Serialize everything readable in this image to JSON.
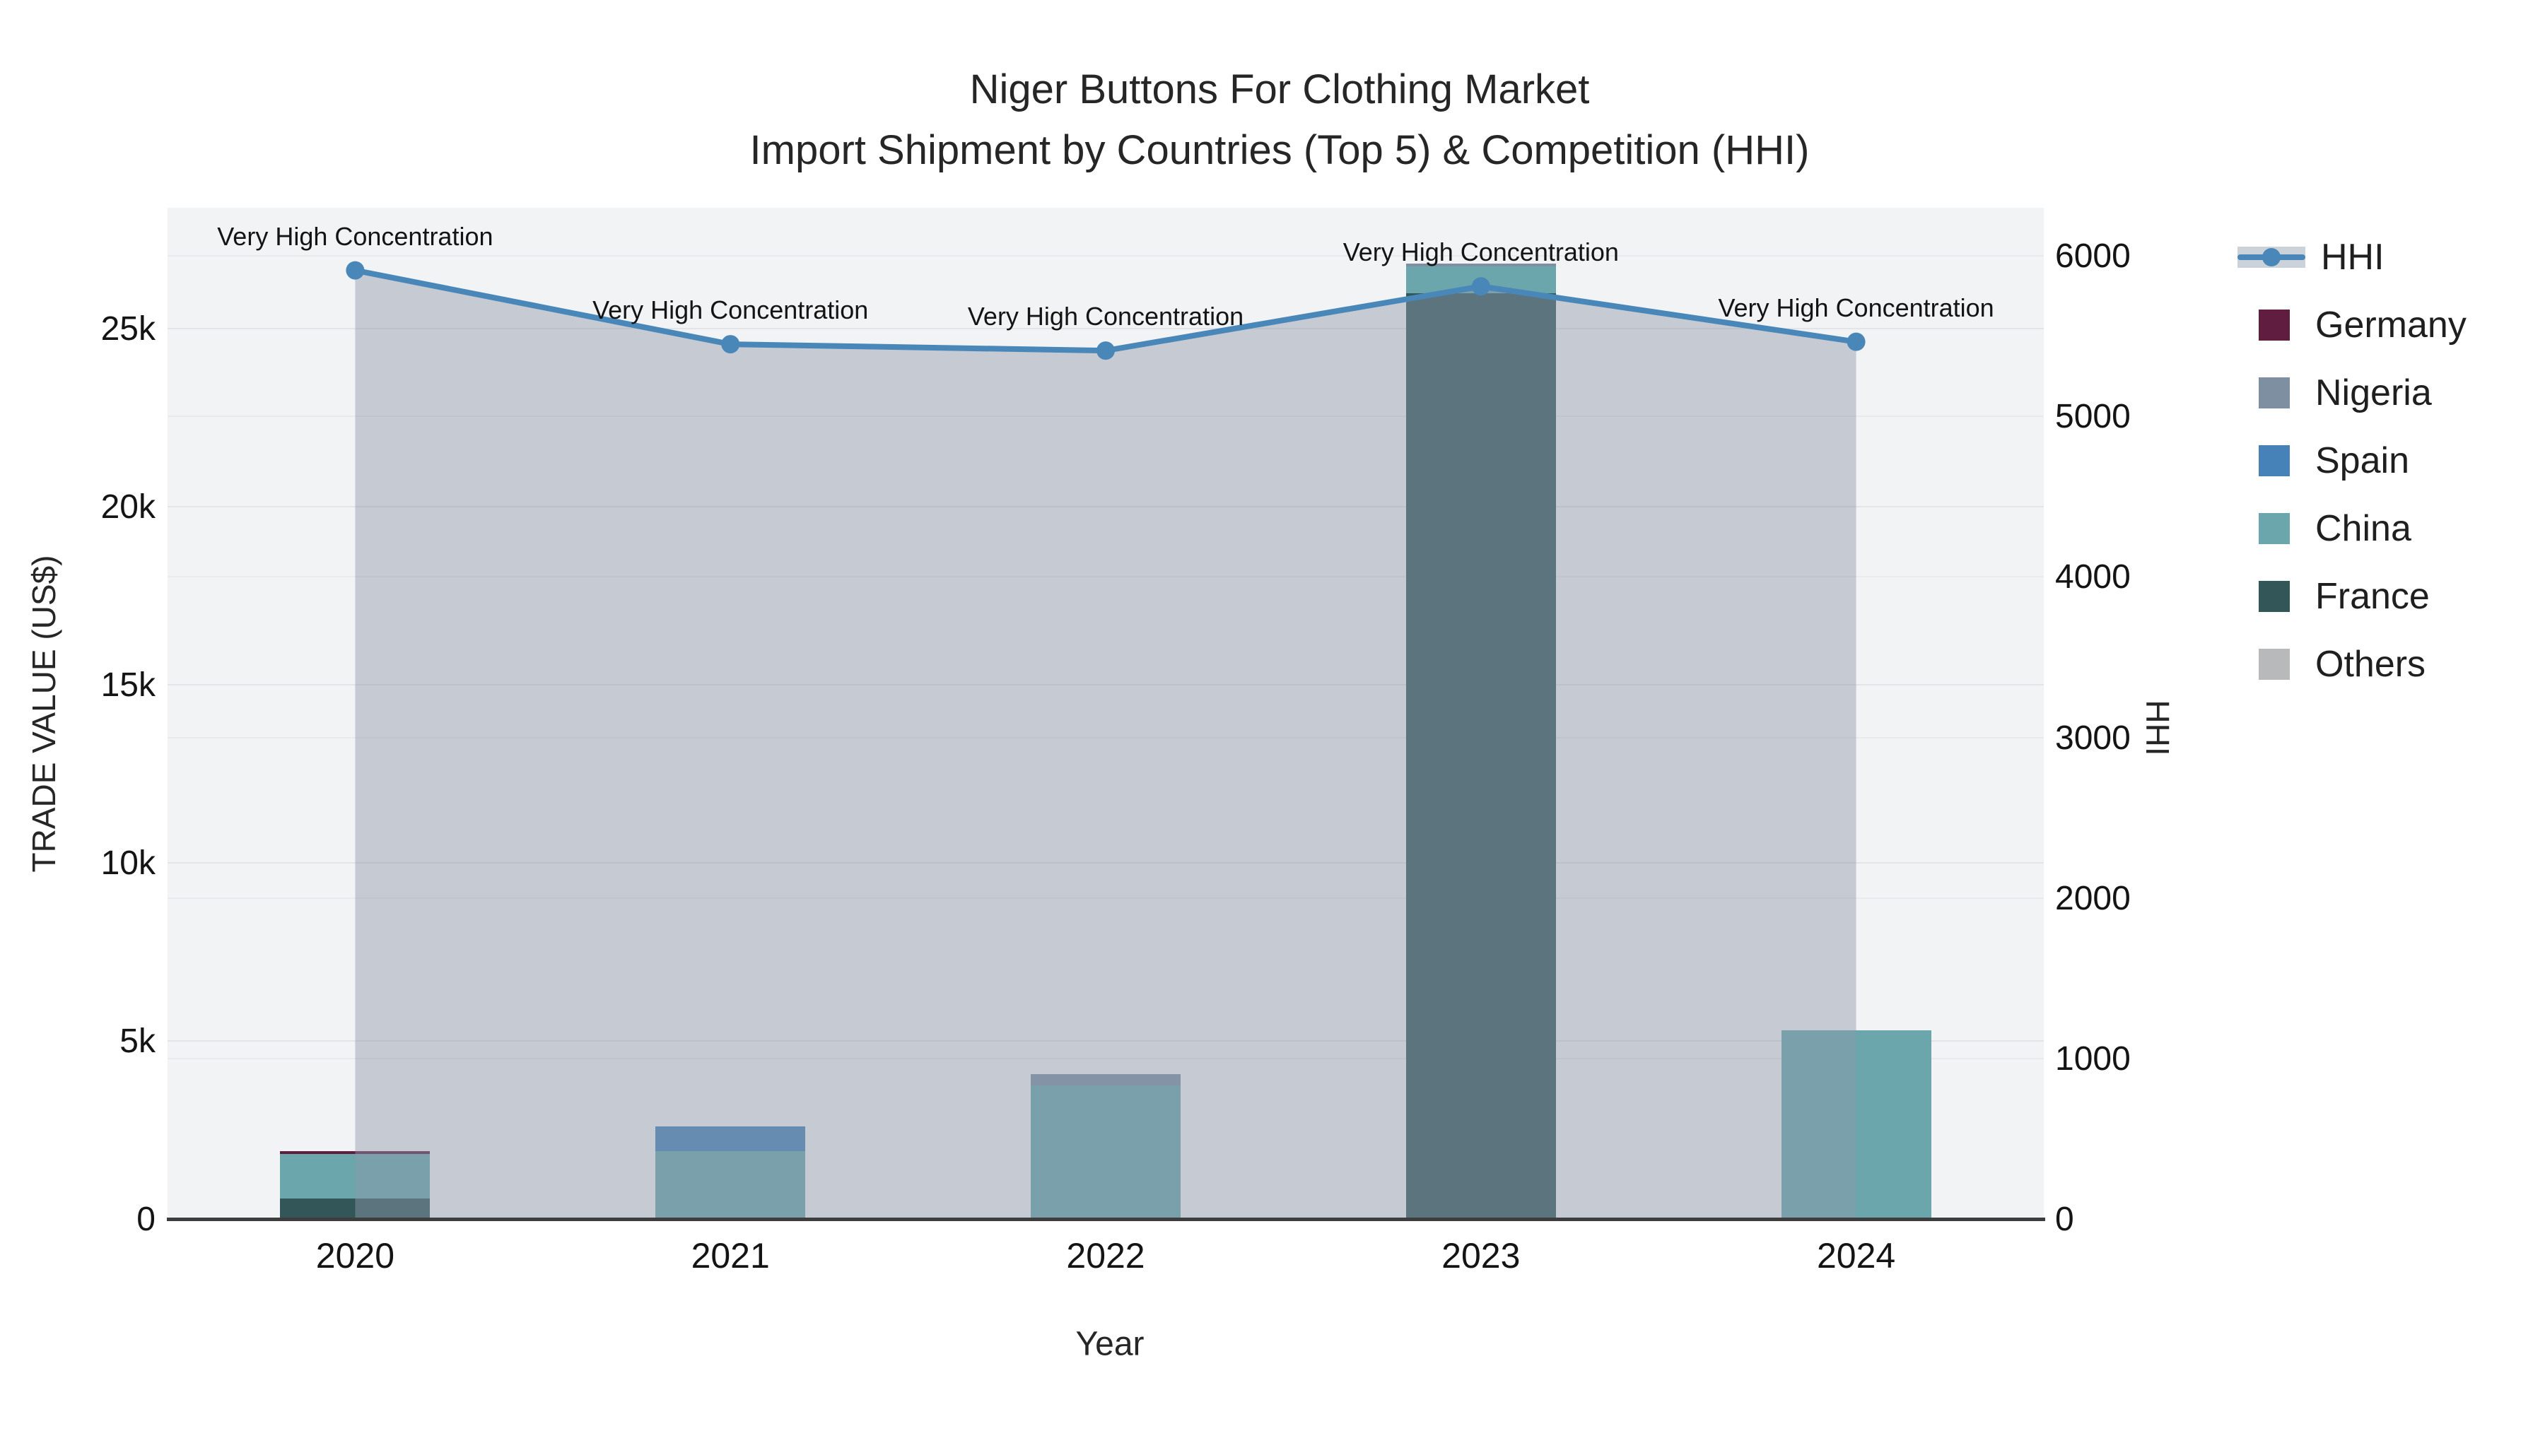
{
  "title": {
    "line1": "Niger Buttons For Clothing Market",
    "line2": "Import Shipment by Countries (Top 5) & Competition (HHI)"
  },
  "axes": {
    "x": {
      "title": "Year",
      "categories": [
        "2020",
        "2021",
        "2022",
        "2023",
        "2024"
      ]
    },
    "y_left": {
      "title": "TRADE VALUE (US$)",
      "tick_labels": [
        "0",
        "5k",
        "10k",
        "15k",
        "20k",
        "25k"
      ],
      "tick_values": [
        0,
        5000,
        10000,
        15000,
        20000,
        25000
      ],
      "range": [
        0,
        28400
      ]
    },
    "y_right": {
      "title": "HHI",
      "tick_labels": [
        "0",
        "1000",
        "2000",
        "3000",
        "4000",
        "5000",
        "6000"
      ],
      "tick_values": [
        0,
        1000,
        2000,
        3000,
        4000,
        5000,
        6000
      ],
      "range": [
        0,
        6300
      ]
    }
  },
  "legend": {
    "items": [
      {
        "label": "HHI",
        "type": "line",
        "color": "#4987b9"
      },
      {
        "label": "Germany",
        "type": "square",
        "color": "#611d40"
      },
      {
        "label": "Nigeria",
        "type": "square",
        "color": "#7e8fa2"
      },
      {
        "label": "Spain",
        "type": "square",
        "color": "#4682b7"
      },
      {
        "label": "China",
        "type": "square",
        "color": "#6aa6ab"
      },
      {
        "label": "France",
        "type": "square",
        "color": "#335659"
      },
      {
        "label": "Others",
        "type": "square",
        "color": "#b7b9bb"
      }
    ]
  },
  "chart_data": {
    "type": "bar+line",
    "title": "Niger Buttons For Clothing Market — Import Shipment by Countries (Top 5) & Competition (HHI)",
    "xlabel": "Year",
    "ylabel_left": "TRADE VALUE (US$)",
    "ylabel_right": "HHI",
    "categories": [
      "2020",
      "2021",
      "2022",
      "2023",
      "2024"
    ],
    "bar_mode": "stack",
    "bar_series": [
      {
        "name": "France",
        "color": "#335659",
        "values": [
          575,
          0,
          0,
          26000,
          0
        ]
      },
      {
        "name": "China",
        "color": "#6aa6ab",
        "values": [
          1250,
          1900,
          3750,
          750,
          5300
        ]
      },
      {
        "name": "Spain",
        "color": "#4682b7",
        "values": [
          0,
          700,
          0,
          0,
          0
        ]
      },
      {
        "name": "Nigeria",
        "color": "#7e8fa2",
        "values": [
          0,
          0,
          320,
          80,
          0
        ]
      },
      {
        "name": "Germany",
        "color": "#611d40",
        "values": [
          80,
          0,
          0,
          0,
          0
        ]
      },
      {
        "name": "Others",
        "color": "#b7b9bb",
        "values": [
          0,
          0,
          0,
          0,
          0
        ]
      }
    ],
    "line_series": {
      "name": "HHI",
      "color": "#4987b9",
      "values": [
        5910,
        5450,
        5410,
        5810,
        5465
      ],
      "fill_under": true,
      "fill_color": "rgba(141,152,171,0.45)"
    },
    "annotations": [
      {
        "x": "2020",
        "text": "Very High Concentration"
      },
      {
        "x": "2021",
        "text": "Very High Concentration"
      },
      {
        "x": "2022",
        "text": "Very High Concentration"
      },
      {
        "x": "2023",
        "text": "Very High Concentration"
      },
      {
        "x": "2024",
        "text": "Very High Concentration"
      }
    ],
    "ylim_left": [
      0,
      28400
    ],
    "ylim_right": [
      0,
      6300
    ],
    "grid": true,
    "legend_position": "right"
  }
}
